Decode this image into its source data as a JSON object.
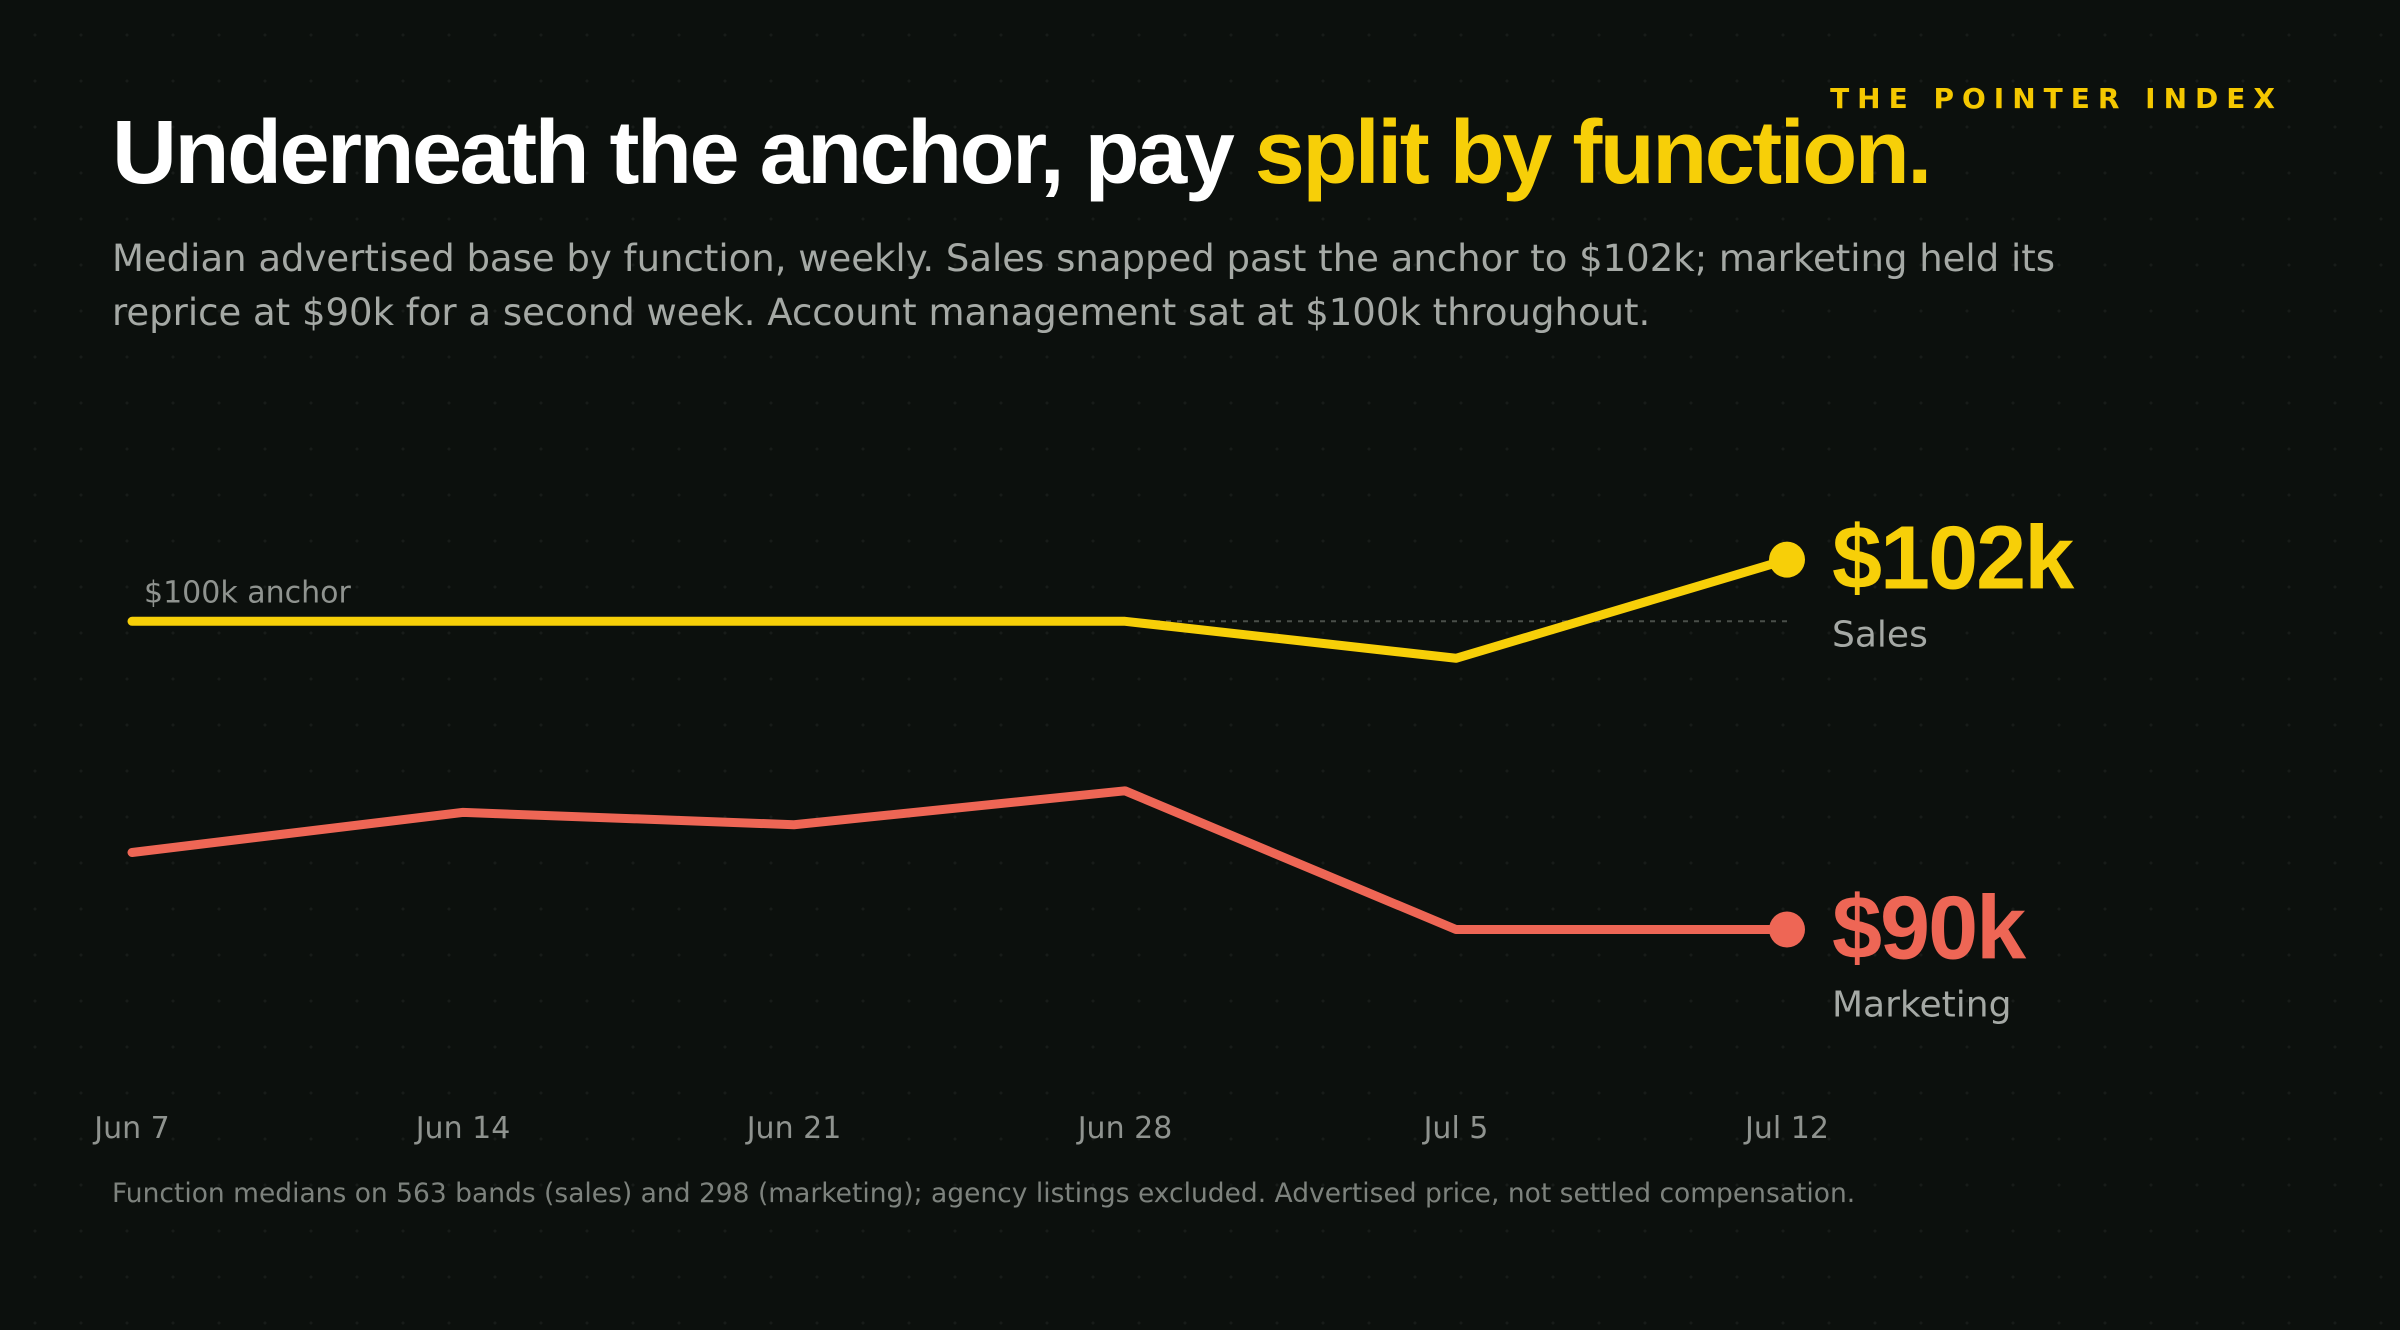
{
  "brand": "THE POINTER INDEX",
  "headline": {
    "lead": "Underneath the anchor, pay ",
    "accent": "split by function."
  },
  "subtitle": "Median advertised base by function, weekly. Sales snapped past the anchor to $102k; marketing held its reprice at $90k for a second week. Account management sat at $100k throughout.",
  "footnote": "Function medians on 563 bands (sales) and 298 (marketing); agency listings excluded. Advertised price, not settled compensation.",
  "colors": {
    "background": "#0c100d",
    "sales": "#f7cf08",
    "marketing": "#ee6655",
    "muted_text": "#a5a9a5",
    "tick_text": "#8f938f"
  },
  "chart_data": {
    "type": "line",
    "x": [
      "Jun 7",
      "Jun 14",
      "Jun 21",
      "Jun 28",
      "Jul 5",
      "Jul 12"
    ],
    "ylim": [
      87,
      104
    ],
    "grid": false,
    "reference_line": {
      "value": 100,
      "label": "$100k anchor"
    },
    "series": [
      {
        "name": "Sales",
        "color": "#f7cf08",
        "values": [
          100,
          100,
          100,
          100,
          98.8,
          102
        ],
        "end_label": "$102k"
      },
      {
        "name": "Marketing",
        "color": "#ee6655",
        "values": [
          92.5,
          93.8,
          93.4,
          94.5,
          90,
          90
        ],
        "end_label": "$90k"
      }
    ]
  }
}
